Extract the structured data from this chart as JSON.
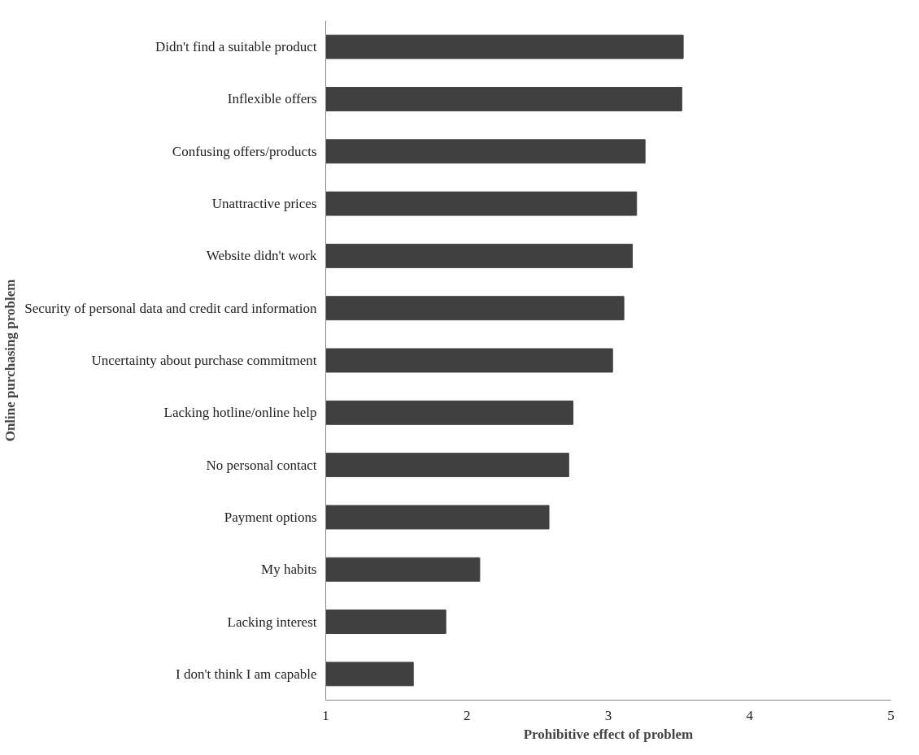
{
  "chart_data": {
    "type": "bar",
    "orientation": "horizontal",
    "xlabel": "Prohibitive effect of problem",
    "ylabel": "Online purchasing problem",
    "categories": [
      "Didn't find a suitable product",
      "Inflexible offers",
      "Confusing offers/products",
      "Unattractive prices",
      "Website didn't work",
      "Security of personal data and credit card information",
      "Uncertainty about purchase commitment",
      "Lacking hotline/online help",
      "No personal contact",
      "Payment options",
      "My habits",
      "Lacking interest",
      "I don't think I am capable"
    ],
    "values": [
      3.53,
      3.52,
      3.26,
      3.2,
      3.17,
      3.11,
      3.03,
      2.75,
      2.72,
      2.58,
      2.09,
      1.85,
      1.62
    ],
    "color": "#404040",
    "xlim": [
      1,
      5
    ],
    "xticks": [
      1,
      2,
      3,
      4,
      5
    ],
    "grid": false
  }
}
